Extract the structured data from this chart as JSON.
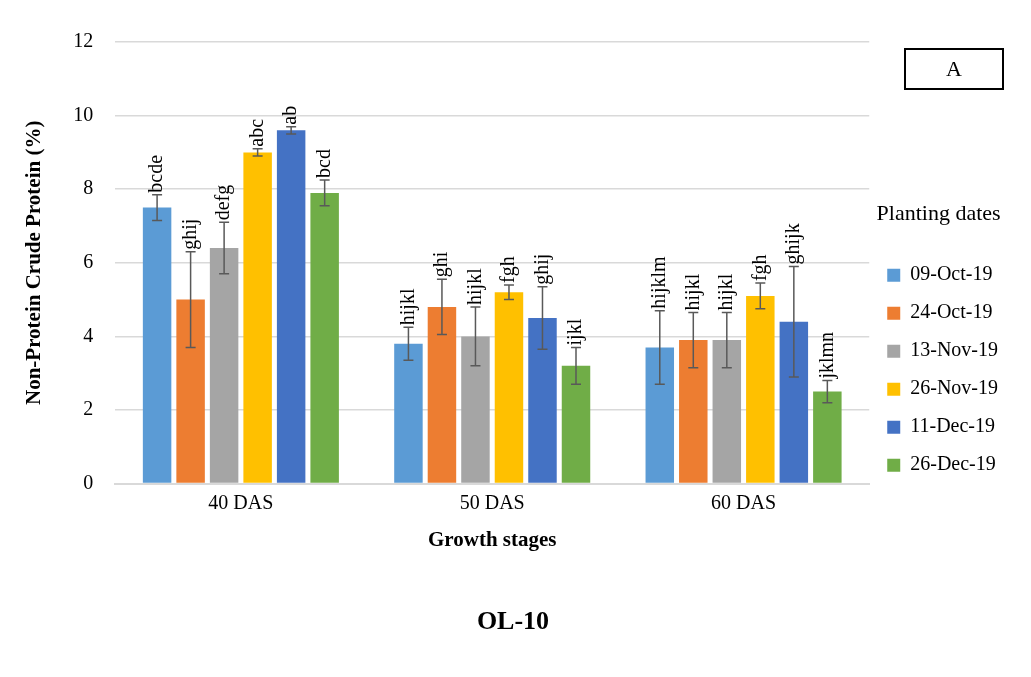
{
  "chart_data": {
    "type": "bar",
    "title": "OL-10",
    "xlabel": "Growth stages",
    "ylabel": "Non-Protein Crude Protein (%)",
    "legend_title": "Planting dates",
    "annotations": [
      "A"
    ],
    "categories": [
      "40 DAS",
      "50 DAS",
      "60 DAS"
    ],
    "series": [
      {
        "name": "09-Oct-19",
        "color": "#5b9bd5",
        "values": [
          7.5,
          3.8,
          3.7
        ],
        "errors": [
          0.35,
          0.45,
          1.0
        ],
        "value_labels": [
          "bcde",
          "hijkl",
          "hijklm"
        ]
      },
      {
        "name": "24-Oct-19",
        "color": "#ed7d31",
        "values": [
          5.0,
          4.8,
          3.9
        ],
        "errors": [
          1.3,
          0.75,
          0.75
        ],
        "value_labels": [
          "ghij",
          "ghi",
          "hijkl"
        ]
      },
      {
        "name": "13-Nov-19",
        "color": "#a5a5a5",
        "values": [
          6.4,
          4.0,
          3.9
        ],
        "errors": [
          0.7,
          0.8,
          0.75
        ],
        "value_labels": [
          "defg",
          "hijkl",
          "hijkl"
        ]
      },
      {
        "name": "26-Nov-19",
        "color": "#ffc000",
        "values": [
          9.0,
          5.2,
          5.1
        ],
        "errors": [
          0.1,
          0.2,
          0.35
        ],
        "value_labels": [
          "abc",
          "fgh",
          "fgh"
        ]
      },
      {
        "name": "11-Dec-19",
        "color": "#4472c4",
        "values": [
          9.6,
          4.5,
          4.4
        ],
        "errors": [
          0.1,
          0.85,
          1.5
        ],
        "value_labels": [
          "ab",
          "ghij",
          "ghijk"
        ]
      },
      {
        "name": "26-Dec-19",
        "color": "#70ad47",
        "values": [
          7.9,
          3.2,
          2.5
        ],
        "errors": [
          0.35,
          0.5,
          0.3
        ],
        "value_labels": [
          "bcd",
          "ijkl",
          "jklmn"
        ]
      }
    ],
    "ylim": [
      0,
      12
    ],
    "yticks": [
      0,
      2,
      4,
      6,
      8,
      10,
      12
    ],
    "grid": "y",
    "legend": "right"
  }
}
